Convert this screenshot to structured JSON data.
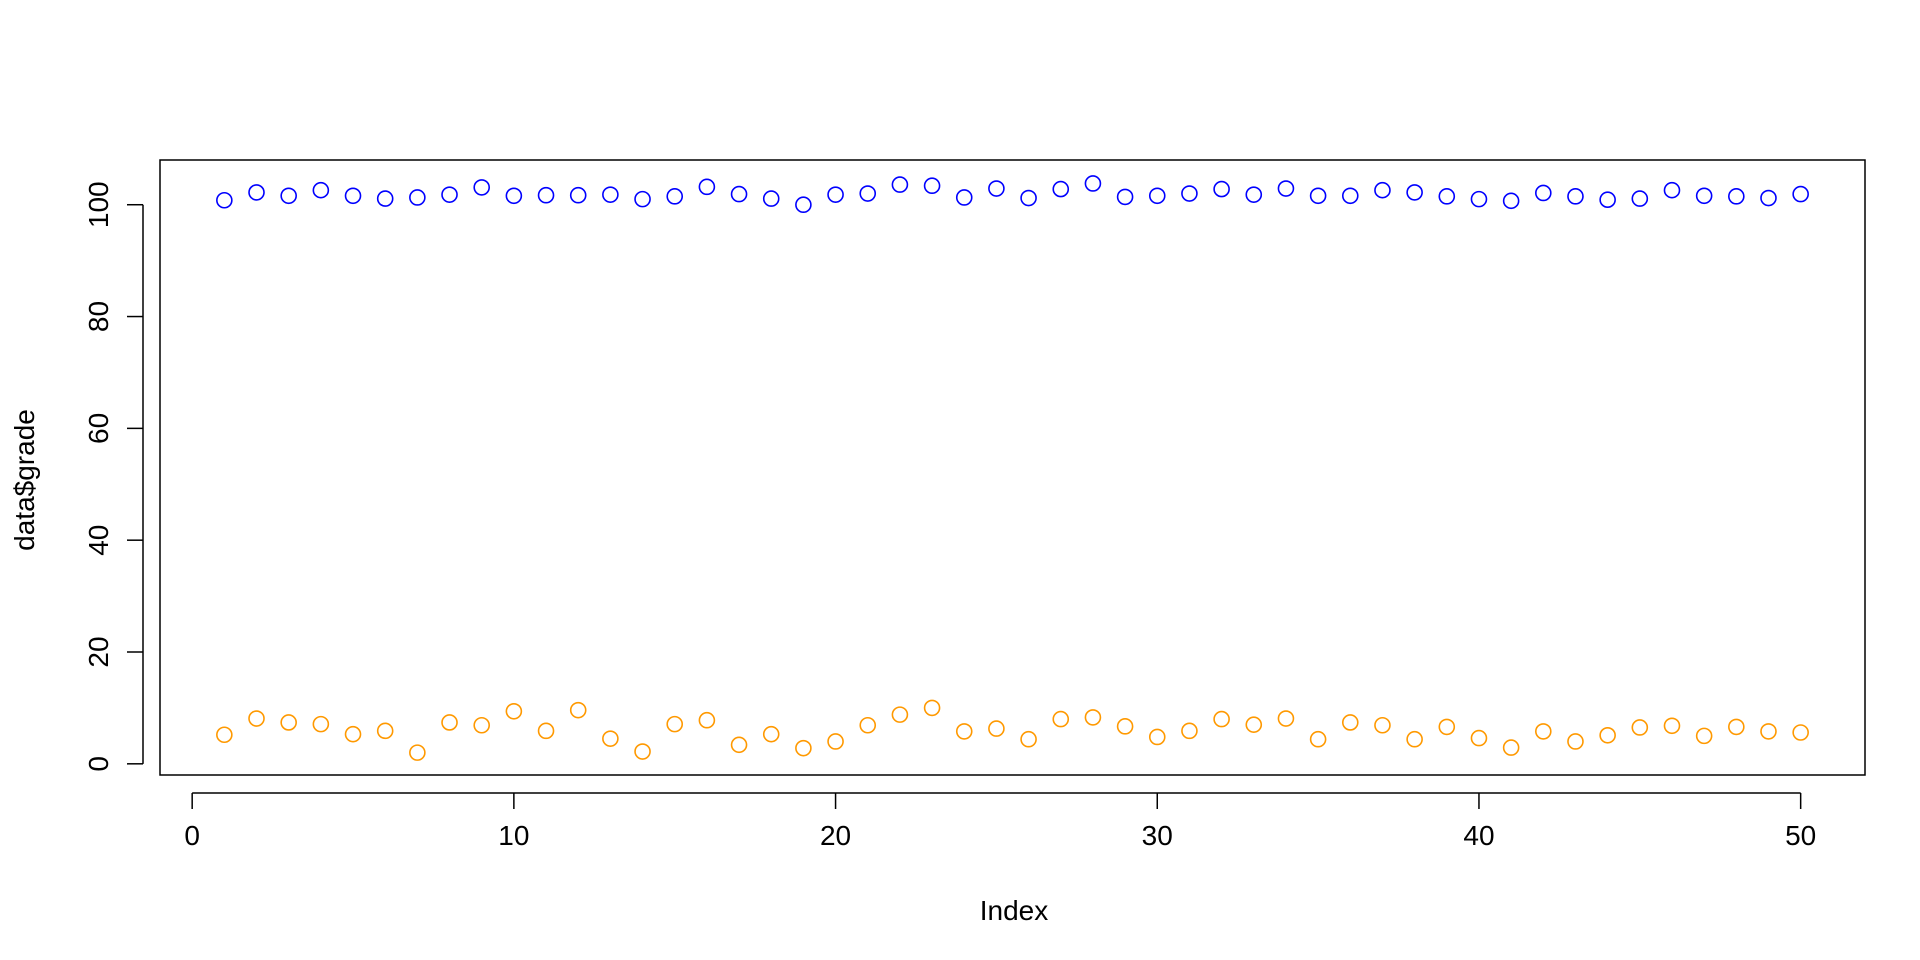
{
  "chart_data": {
    "type": "scatter",
    "xlabel": "Index",
    "ylabel": "data$grade",
    "xlim": [
      -1,
      52
    ],
    "ylim": [
      -2,
      108
    ],
    "x_ticks": [
      0,
      10,
      20,
      30,
      40,
      50
    ],
    "y_ticks": [
      0,
      20,
      40,
      60,
      80,
      100
    ],
    "x_tick_labels": [
      "0",
      "10",
      "20",
      "30",
      "40",
      "50"
    ],
    "y_tick_labels": [
      "0",
      "20",
      "40",
      "60",
      "80",
      "100"
    ],
    "marker": "open-circle",
    "x": [
      1,
      2,
      3,
      4,
      5,
      6,
      7,
      8,
      9,
      10,
      11,
      12,
      13,
      14,
      15,
      16,
      17,
      18,
      19,
      20,
      21,
      22,
      23,
      24,
      25,
      26,
      27,
      28,
      29,
      30,
      31,
      32,
      33,
      34,
      35,
      36,
      37,
      38,
      39,
      40,
      41,
      42,
      43,
      44,
      45,
      46,
      47,
      48,
      49,
      50
    ],
    "series": [
      {
        "color": "#0000ff",
        "values": [
          100.8,
          102.2,
          101.6,
          102.6,
          101.6,
          101.1,
          101.3,
          101.8,
          103.1,
          101.6,
          101.7,
          101.7,
          101.8,
          101.0,
          101.5,
          103.2,
          101.9,
          101.1,
          100.0,
          101.8,
          102.0,
          103.6,
          103.4,
          101.3,
          102.9,
          101.2,
          102.8,
          103.8,
          101.4,
          101.6,
          102.0,
          102.8,
          101.8,
          102.9,
          101.6,
          101.6,
          102.6,
          102.2,
          101.5,
          101.0,
          100.7,
          102.1,
          101.5,
          100.9,
          101.1,
          102.6,
          101.6,
          101.5,
          101.2,
          101.9
        ]
      },
      {
        "color": "#ff9900",
        "values": [
          5.2,
          8.1,
          7.4,
          7.1,
          5.3,
          5.9,
          2.0,
          7.4,
          6.9,
          9.4,
          5.9,
          9.6,
          4.5,
          2.2,
          7.1,
          7.8,
          3.4,
          5.3,
          2.8,
          4.0,
          6.9,
          8.8,
          10.0,
          5.8,
          6.3,
          4.4,
          8.0,
          8.3,
          6.7,
          4.8,
          5.9,
          8.0,
          7.0,
          8.1,
          4.4,
          7.4,
          6.9,
          4.4,
          6.6,
          4.6,
          2.9,
          5.8,
          4.0,
          5.1,
          6.5,
          6.8,
          5.0,
          6.6,
          5.8,
          5.6
        ]
      }
    ]
  }
}
